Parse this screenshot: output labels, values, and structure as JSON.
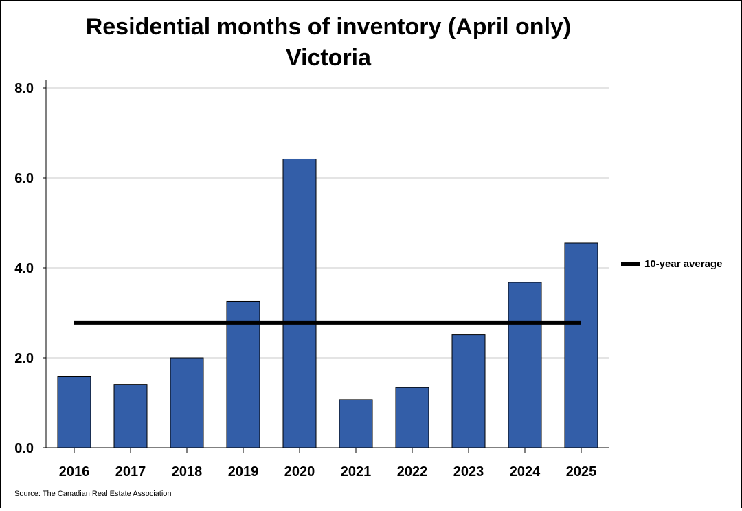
{
  "chart_data": {
    "type": "bar",
    "title": "Residential months of inventory (April only)",
    "subtitle": "Victoria",
    "xlabel": "",
    "ylabel": "",
    "categories": [
      "2016",
      "2017",
      "2018",
      "2019",
      "2020",
      "2021",
      "2022",
      "2023",
      "2024",
      "2025"
    ],
    "series": [
      {
        "values": [
          1.58,
          1.41,
          2.0,
          3.26,
          6.42,
          1.07,
          1.34,
          2.51,
          3.68,
          4.55
        ]
      }
    ],
    "reference_lines": [
      {
        "name": "10-year average",
        "value": 2.78,
        "color": "#000000"
      }
    ],
    "ylim": [
      0,
      8
    ],
    "yticks": [
      "0.0",
      "2.0",
      "4.0",
      "6.0",
      "8.0"
    ],
    "ytick_values": [
      0,
      2,
      4,
      6,
      8
    ],
    "grid": "horizontal",
    "legend": {
      "position": "right",
      "entries": [
        "10-year average"
      ]
    },
    "colors": {
      "bar": "#335ea8",
      "bar_border": "#000000",
      "average_line": "#000000",
      "gridline": "#c8c8c8"
    }
  },
  "source_note": "Source: The Canadian Real Estate Association"
}
